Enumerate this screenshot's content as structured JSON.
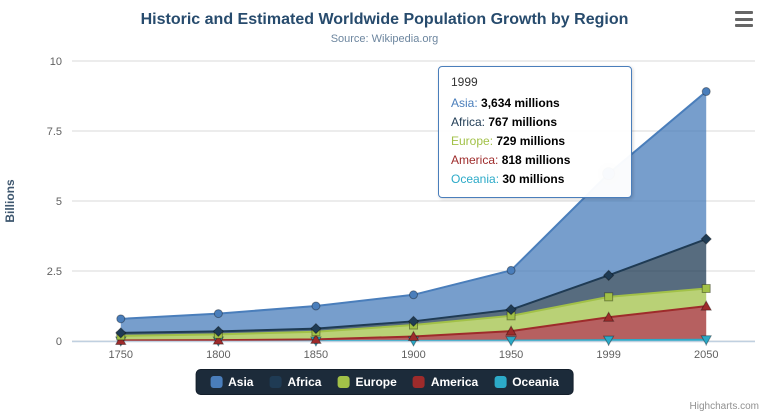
{
  "header": {
    "title": "Historic and Estimated Worldwide Population Growth by Region",
    "subtitle": "Source: Wikipedia.org"
  },
  "credits": "Highcharts.com",
  "chart_data": {
    "type": "area",
    "stacking": "normal",
    "title": "Historic and Estimated Worldwide Population Growth by Region",
    "subtitle": "Source: Wikipedia.org",
    "xlabel": "",
    "ylabel": "Billions",
    "unit": "millions",
    "grid": true,
    "legend_position": "bottom",
    "categories": [
      "1750",
      "1800",
      "1850",
      "1900",
      "1950",
      "1999",
      "2050"
    ],
    "yticks": [
      0,
      2.5,
      5,
      7.5,
      10
    ],
    "ylim": [
      0,
      10
    ],
    "series": [
      {
        "name": "Asia",
        "color": "#4a7ebb",
        "marker": "circle",
        "values": [
          502,
          635,
          809,
          947,
          1402,
          3634,
          5268
        ]
      },
      {
        "name": "Africa",
        "color": "#1f3b54",
        "marker": "diamond",
        "values": [
          106,
          107,
          111,
          133,
          221,
          767,
          1766
        ]
      },
      {
        "name": "Europe",
        "color": "#a2c148",
        "marker": "square",
        "values": [
          163,
          203,
          276,
          408,
          547,
          729,
          628
        ]
      },
      {
        "name": "America",
        "color": "#9e2b2b",
        "marker": "triangle",
        "values": [
          18,
          31,
          54,
          156,
          339,
          818,
          1201
        ]
      },
      {
        "name": "Oceania",
        "color": "#2caac8",
        "marker": "triangle-down",
        "values": [
          2,
          2,
          2,
          6,
          13,
          30,
          46
        ]
      }
    ],
    "hover": {
      "series": "Asia",
      "category": "1999",
      "series_index": 0,
      "point_index": 5
    }
  },
  "tooltip": {
    "header": "1999",
    "rows": [
      {
        "name": "Asia",
        "value": "3,634 millions"
      },
      {
        "name": "Africa",
        "value": "767 millions"
      },
      {
        "name": "Europe",
        "value": "729 millions"
      },
      {
        "name": "America",
        "value": "818 millions"
      },
      {
        "name": "Oceania",
        "value": "30 millions"
      }
    ]
  }
}
